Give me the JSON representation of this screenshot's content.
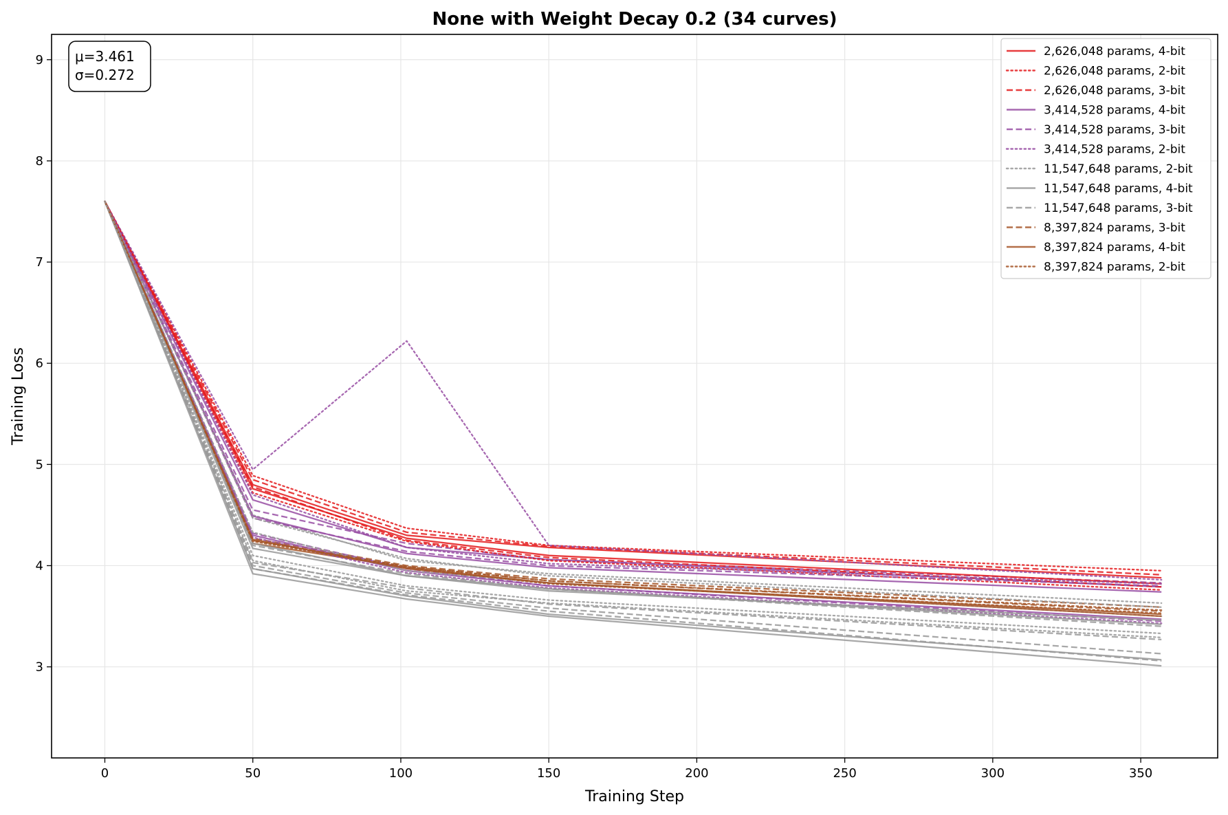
{
  "chart_data": {
    "type": "line",
    "title": "None with Weight Decay 0.2 (34 curves)",
    "xlabel": "Training Step",
    "ylabel": "Training Loss",
    "xlim": [
      -18,
      376
    ],
    "ylim": [
      2.1,
      9.25
    ],
    "xticks": [
      0,
      50,
      100,
      150,
      200,
      250,
      300,
      350
    ],
    "yticks": [
      3,
      4,
      5,
      6,
      7,
      8,
      9
    ],
    "xtick_labels": [
      "0",
      "50",
      "100",
      "150",
      "200",
      "250",
      "300",
      "350"
    ],
    "ytick_labels": [
      "3",
      "4",
      "5",
      "6",
      "7",
      "8",
      "9"
    ],
    "grid": true,
    "legend_position": "top-right",
    "stats_box": {
      "mu": "μ=3.461",
      "sigma": "σ=0.272"
    },
    "x": [
      0,
      50,
      102,
      150,
      357
    ],
    "series": [
      {
        "name": "2,626,048 params, 4-bit",
        "color": "#e41a1c",
        "dash": "solid",
        "values": [
          7.6,
          4.8,
          4.3,
          4.18,
          3.88
        ]
      },
      {
        "name": "2,626,048 params, 2-bit",
        "color": "#e41a1c",
        "dash": "dotted",
        "values": [
          7.6,
          4.89,
          4.37,
          4.2,
          3.95
        ]
      },
      {
        "name": "2,626,048 params, 3-bit",
        "color": "#e41a1c",
        "dash": "dashed",
        "values": [
          7.6,
          4.85,
          4.33,
          4.19,
          3.91
        ]
      },
      {
        "name": "3,414,528 params, 4-bit",
        "color": "#984ea3",
        "dash": "solid",
        "values": [
          7.6,
          4.65,
          4.18,
          4.06,
          3.79
        ]
      },
      {
        "name": "3,414,528 params, 3-bit",
        "color": "#984ea3",
        "dash": "dashed",
        "values": [
          7.6,
          4.55,
          4.22,
          4.06,
          3.83
        ]
      },
      {
        "name": "3,414,528 params, 2-bit",
        "color": "#984ea3",
        "dash": "dotted",
        "values": [
          7.6,
          4.95,
          6.22,
          4.2,
          3.86
        ]
      },
      {
        "name": "11,547,648 params, 2-bit",
        "color": "#999999",
        "dash": "dotted",
        "values": [
          7.6,
          4.5,
          4.05,
          3.92,
          3.63
        ]
      },
      {
        "name": "11,547,648 params, 4-bit",
        "color": "#999999",
        "dash": "solid",
        "values": [
          7.6,
          3.92,
          3.67,
          3.5,
          3.01
        ]
      },
      {
        "name": "11,547,648 params, 3-bit",
        "color": "#999999",
        "dash": "dashed",
        "values": [
          7.6,
          4.03,
          3.78,
          3.62,
          3.27
        ]
      },
      {
        "name": "8,397,824 params, 3-bit",
        "color": "#a65628",
        "dash": "dashed",
        "values": [
          7.6,
          4.27,
          4.0,
          3.87,
          3.59
        ]
      },
      {
        "name": "8,397,824 params, 4-bit",
        "color": "#a65628",
        "dash": "solid",
        "values": [
          7.6,
          4.22,
          3.98,
          3.83,
          3.52
        ]
      },
      {
        "name": "8,397,824 params, 2-bit",
        "color": "#a65628",
        "dash": "dotted",
        "values": [
          7.6,
          4.25,
          3.99,
          3.85,
          3.56
        ]
      },
      {
        "color": "#e41a1c",
        "dash": "solid",
        "values": [
          7.6,
          4.76,
          4.27,
          4.1,
          3.82
        ]
      },
      {
        "color": "#e41a1c",
        "dash": "dotted",
        "values": [
          7.6,
          4.72,
          4.24,
          4.05,
          3.76
        ]
      },
      {
        "color": "#e41a1c",
        "dash": "dashed",
        "values": [
          7.6,
          4.78,
          4.25,
          4.08,
          3.79
        ]
      },
      {
        "color": "#984ea3",
        "dash": "solid",
        "values": [
          7.6,
          4.49,
          4.12,
          3.98,
          3.74
        ]
      },
      {
        "color": "#984ea3",
        "dash": "dashed",
        "values": [
          7.6,
          4.47,
          4.14,
          4.0,
          3.8
        ]
      },
      {
        "color": "#984ea3",
        "dash": "dotted",
        "values": [
          7.6,
          4.7,
          4.18,
          4.02,
          3.82
        ]
      },
      {
        "color": "#984ea3",
        "dash": "solid",
        "values": [
          7.6,
          4.3,
          3.95,
          3.8,
          3.47
        ]
      },
      {
        "color": "#984ea3",
        "dash": "dashed",
        "values": [
          7.6,
          4.32,
          3.97,
          3.8,
          3.45
        ]
      },
      {
        "color": "#984ea3",
        "dash": "dotted",
        "values": [
          7.6,
          4.28,
          3.93,
          3.78,
          3.43
        ]
      },
      {
        "color": "#999999",
        "dash": "dotted",
        "values": [
          7.6,
          4.47,
          4.07,
          3.9,
          3.59
        ]
      },
      {
        "color": "#999999",
        "dash": "dotted",
        "values": [
          7.6,
          4.33,
          3.95,
          3.83,
          3.5
        ]
      },
      {
        "color": "#999999",
        "dash": "dotted",
        "values": [
          7.6,
          4.05,
          3.75,
          3.63,
          3.29
        ]
      },
      {
        "color": "#999999",
        "dash": "solid",
        "values": [
          7.6,
          4.22,
          3.9,
          3.75,
          3.46
        ]
      },
      {
        "color": "#999999",
        "dash": "solid",
        "values": [
          7.6,
          4.17,
          3.9,
          3.77,
          3.42
        ]
      },
      {
        "color": "#999999",
        "dash": "solid",
        "values": [
          7.6,
          3.97,
          3.7,
          3.52,
          3.07
        ]
      },
      {
        "color": "#999999",
        "dash": "dashed",
        "values": [
          7.6,
          4.0,
          3.73,
          3.58,
          3.13
        ]
      },
      {
        "color": "#999999",
        "dash": "dashed",
        "values": [
          7.6,
          3.97,
          3.71,
          3.55,
          3.06
        ]
      },
      {
        "color": "#999999",
        "dash": "dashed",
        "values": [
          7.6,
          4.2,
          3.92,
          3.77,
          3.4
        ]
      },
      {
        "color": "#a65628",
        "dash": "dashed",
        "values": [
          7.6,
          4.25,
          3.99,
          3.85,
          3.55
        ]
      },
      {
        "color": "#a65628",
        "dash": "solid",
        "values": [
          7.6,
          4.26,
          3.97,
          3.83,
          3.5
        ]
      },
      {
        "color": "#a65628",
        "dash": "dotted",
        "values": [
          7.6,
          4.24,
          3.98,
          3.82,
          3.53
        ]
      },
      {
        "color": "#999999",
        "dash": "dotted",
        "values": [
          7.6,
          4.1,
          3.8,
          3.66,
          3.33
        ]
      }
    ]
  }
}
